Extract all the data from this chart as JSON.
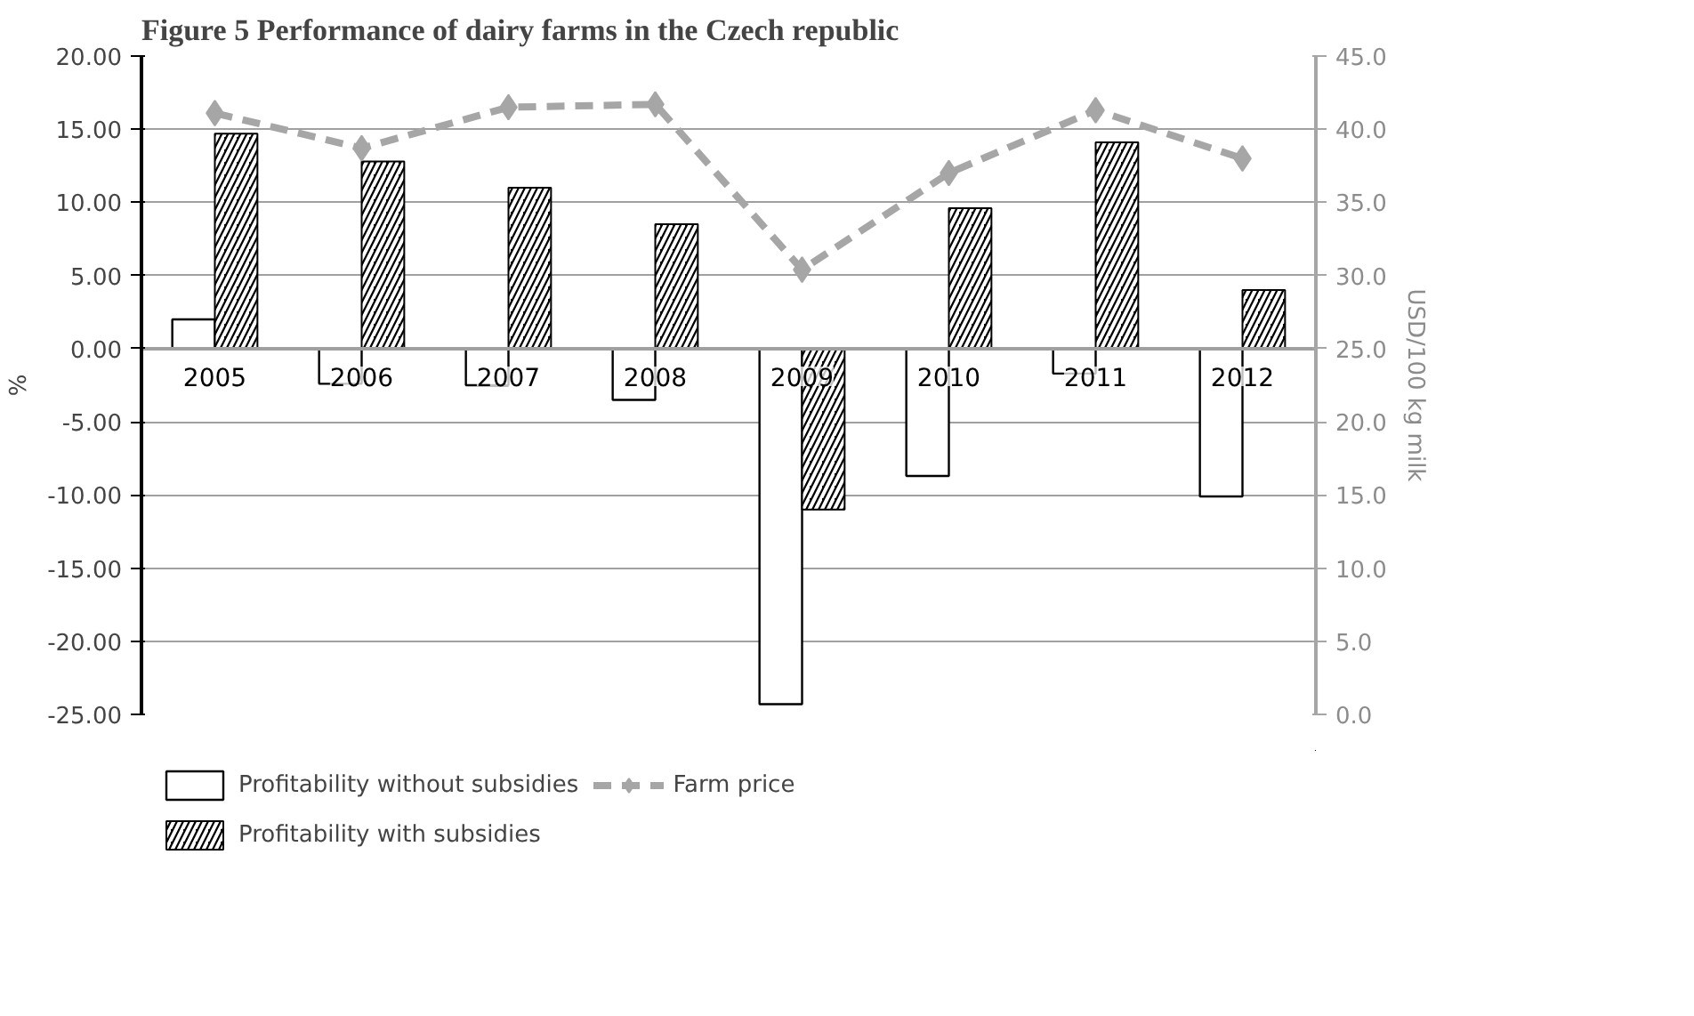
{
  "chart_data": {
    "type": "bar",
    "title": "Figure 5 Performance of dairy farms in the Czech republic",
    "ylabel": "%",
    "y2label": "USD/100 kg milk",
    "categories": [
      "2005",
      "2006",
      "2007",
      "2008",
      "2009",
      "2010",
      "2011",
      "2012"
    ],
    "series": [
      {
        "name": "Profitability without subsidies",
        "color": "#ffffff",
        "values": [
          2.0,
          -2.4,
          -2.5,
          -3.5,
          -24.3,
          -8.7,
          -1.7,
          -10.1
        ]
      },
      {
        "name": "Profitability with subsidies",
        "color": "#000000",
        "values": [
          14.7,
          12.8,
          11.0,
          8.5,
          -11.0,
          9.6,
          14.1,
          4.0
        ]
      },
      {
        "name": "Farm price",
        "type": "line",
        "axis": "y2",
        "color": "#a6a6a6",
        "values": [
          41.1,
          38.7,
          41.5,
          41.7,
          30.4,
          37.0,
          41.3,
          38.0
        ]
      }
    ],
    "ylim": [
      -25,
      20
    ],
    "yticks": [
      {
        "value": -25,
        "label": "-25.00"
      },
      {
        "value": -20,
        "label": "-20.00"
      },
      {
        "value": -15,
        "label": "-15.00"
      },
      {
        "value": -10,
        "label": "-10.00"
      },
      {
        "value": -5,
        "label": "-5.00"
      },
      {
        "value": 0,
        "label": "0.00"
      },
      {
        "value": 5,
        "label": "5.00"
      },
      {
        "value": 10,
        "label": "10.00"
      },
      {
        "value": 15,
        "label": "15.00"
      },
      {
        "value": 20,
        "label": "20.00"
      }
    ],
    "y2lim": [
      0,
      45
    ],
    "y2ticks": [
      {
        "value": 0,
        "label": "0.0"
      },
      {
        "value": 5,
        "label": "5.0"
      },
      {
        "value": 10,
        "label": "10.0"
      },
      {
        "value": 15,
        "label": "15.0"
      },
      {
        "value": 20,
        "label": "20.0"
      },
      {
        "value": 25,
        "label": "25.0"
      },
      {
        "value": 30,
        "label": "30.0"
      },
      {
        "value": 35,
        "label": "35.0"
      },
      {
        "value": 40,
        "label": "40.0"
      },
      {
        "value": 45,
        "label": "45.0"
      }
    ],
    "grid": "y",
    "legend": "bottom",
    "marker": "diamond",
    "line_style": "dashed"
  }
}
